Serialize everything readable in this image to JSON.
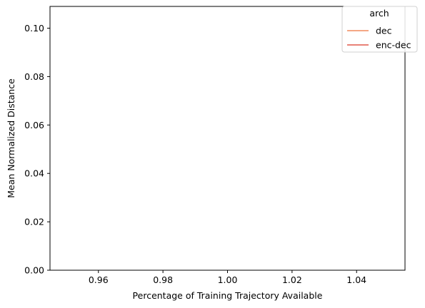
{
  "chart_data": {
    "type": "line",
    "title": "",
    "xlabel": "Percentage of Training Trajectory Available",
    "ylabel": "Mean Normalized Distance",
    "xlim": [
      0.945,
      1.055
    ],
    "ylim": [
      0.0,
      0.109
    ],
    "xticks": [
      0.96,
      0.98,
      1.0,
      1.02,
      1.04
    ],
    "xtick_labels": [
      "0.96",
      "0.98",
      "1.00",
      "1.02",
      "1.04"
    ],
    "yticks": [
      0.0,
      0.02,
      0.04,
      0.06,
      0.08,
      0.1
    ],
    "ytick_labels": [
      "0.00",
      "0.02",
      "0.04",
      "0.06",
      "0.08",
      "0.10"
    ],
    "grid": false,
    "legend": {
      "title": "arch",
      "placement": "top-right",
      "entries": [
        {
          "label": "dec",
          "color": "#f08a5d"
        },
        {
          "label": "enc-dec",
          "color": "#e0584a"
        }
      ]
    },
    "series": [
      {
        "name": "dec",
        "color": "#f08a5d",
        "x": [],
        "y": []
      },
      {
        "name": "enc-dec",
        "color": "#e0584a",
        "x": [],
        "y": []
      }
    ]
  }
}
